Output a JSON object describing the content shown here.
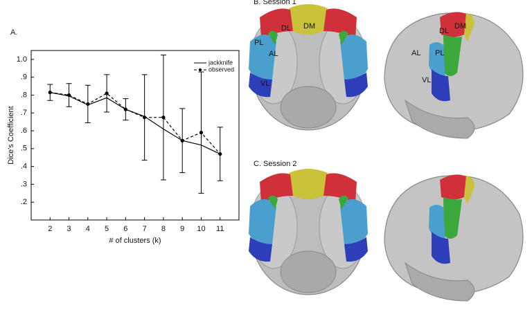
{
  "panel_labels": [
    "A.",
    "B. Session 1",
    "C. Session 2"
  ],
  "region_labels": {
    "front": [
      "DL",
      "DM",
      "PL",
      "AL",
      "VL"
    ],
    "side": [
      "DL",
      "DM",
      "AL",
      "PL",
      "VL"
    ]
  },
  "chart_data": {
    "type": "line",
    "x_label": "# of clusters (k)",
    "y_label": "Dice's Coefficient",
    "x": [
      2,
      3,
      4,
      5,
      6,
      7,
      8,
      9,
      10,
      11
    ],
    "series": [
      {
        "name": "jackknife",
        "color": "#000000",
        "line_style": "solid",
        "marker": "none",
        "values": [
          0.815,
          0.795,
          0.745,
          0.785,
          0.72,
          0.68,
          0.61,
          0.545,
          0.52,
          0.47
        ]
      },
      {
        "name": "observed",
        "color": "#000000",
        "line_style": "dashed",
        "marker": "circle",
        "values": [
          0.815,
          0.8,
          0.75,
          0.81,
          0.72,
          0.675,
          0.675,
          0.545,
          0.59,
          0.47
        ],
        "errors": [
          0.045,
          0.065,
          0.105,
          0.105,
          0.06,
          0.24,
          0.35,
          0.18,
          0.34,
          0.15
        ]
      }
    ],
    "xlim": [
      1,
      12
    ],
    "xticks": [
      2,
      3,
      4,
      5,
      6,
      7,
      8,
      9,
      10,
      11
    ],
    "ylim": [
      0.1,
      1.05
    ],
    "yticks": [
      {
        "value": 0.2,
        "label": ".2"
      },
      {
        "value": 0.3,
        "label": ".3"
      },
      {
        "value": 0.4,
        "label": ".4"
      },
      {
        "value": 0.5,
        "label": ".5"
      },
      {
        "value": 0.6,
        "label": ".6"
      },
      {
        "value": 0.7,
        "label": ".7"
      },
      {
        "value": 0.8,
        "label": ".8"
      },
      {
        "value": 0.9,
        "label": ".9"
      },
      {
        "value": 1,
        "label": "1.0"
      }
    ],
    "grid": false,
    "legend": "upper right"
  }
}
